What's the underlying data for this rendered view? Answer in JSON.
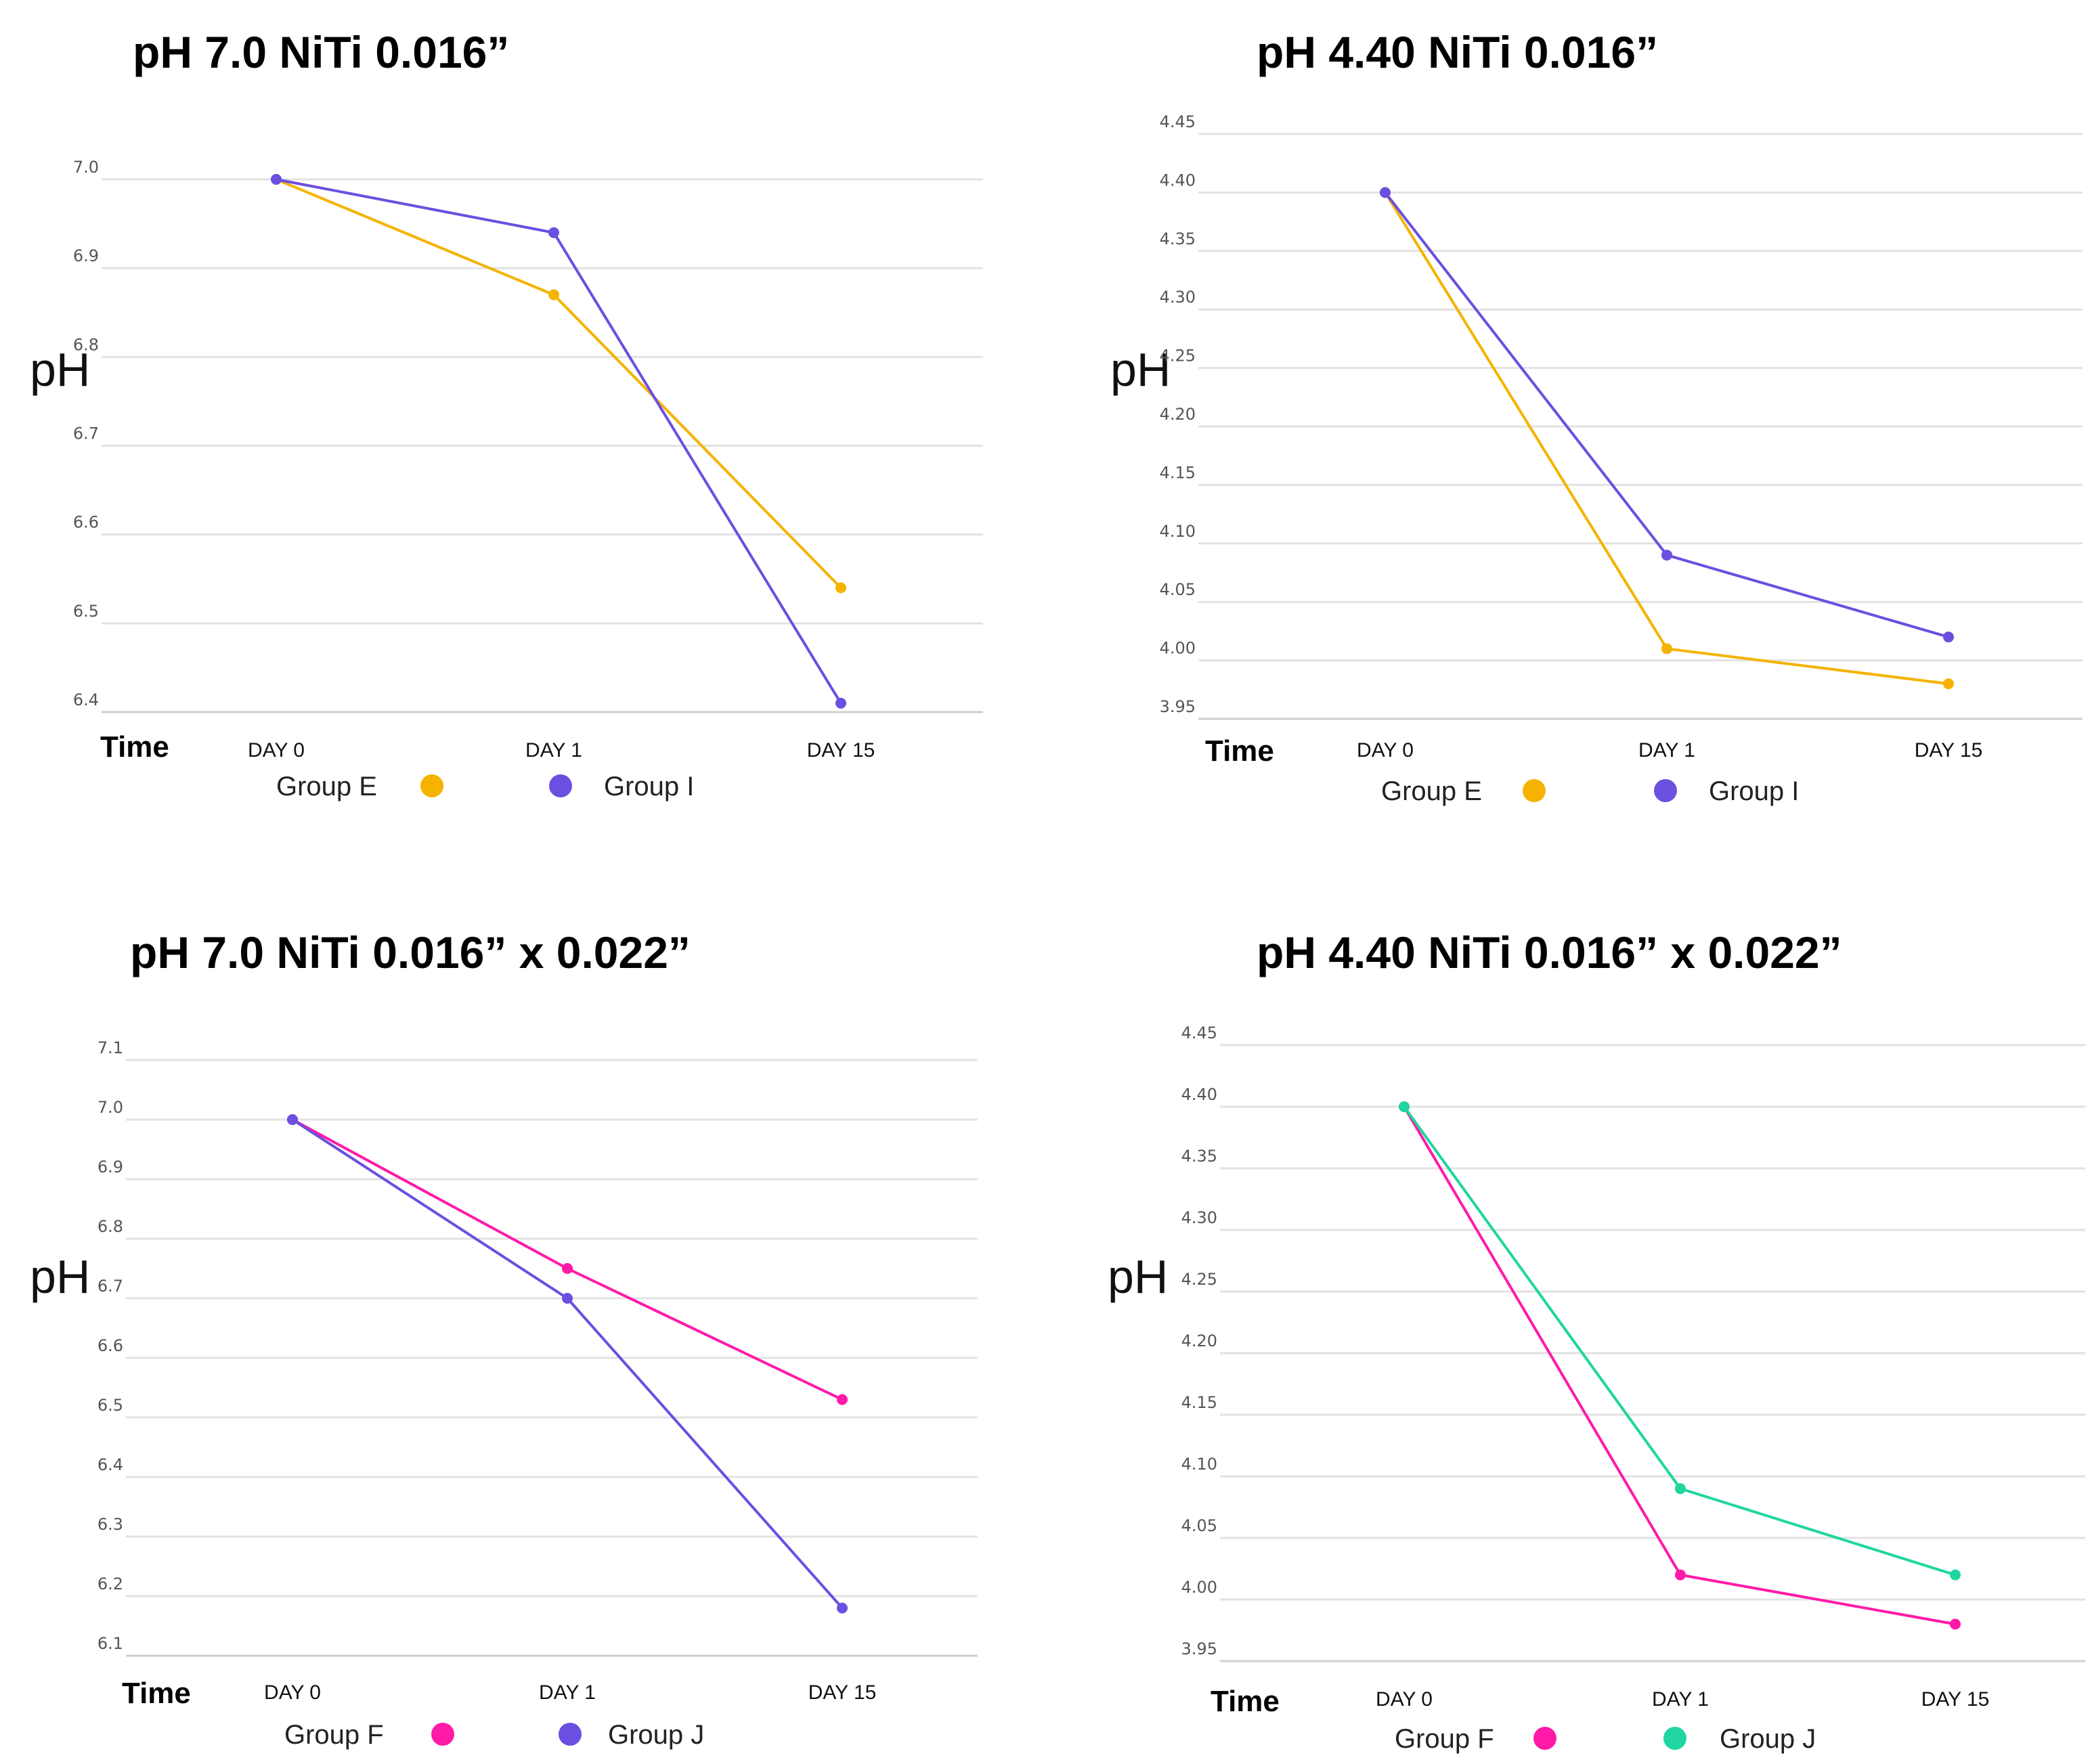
{
  "chart_data": [
    {
      "type": "line",
      "title": "pH 7.0 NiTi 0.016”",
      "xlabel": "Time",
      "ylabel": "pH",
      "categories": [
        "DAY 0",
        "DAY 1",
        "DAY 15"
      ],
      "yticks": [
        "7.0",
        "6.9",
        "6.8",
        "6.7",
        "6.6",
        "6.5",
        "6.4"
      ],
      "ylim": [
        6.4,
        7.0
      ],
      "series": [
        {
          "name": "Group E",
          "color": "#F5B300",
          "values": [
            7.0,
            6.87,
            6.54
          ]
        },
        {
          "name": "Group I",
          "color": "#6B4FE0",
          "values": [
            7.0,
            6.94,
            6.41
          ]
        }
      ]
    },
    {
      "type": "line",
      "title": "pH 4.40 NiTi 0.016”",
      "xlabel": "Time",
      "ylabel": "pH",
      "categories": [
        "DAY 0",
        "DAY 1",
        "DAY 15"
      ],
      "yticks": [
        "4.45",
        "4.40",
        "4.35",
        "4.30",
        "4.25",
        "4.20",
        "4.15",
        "4.10",
        "4.05",
        "4.00",
        "3.95"
      ],
      "ylim": [
        3.95,
        4.45
      ],
      "series": [
        {
          "name": "Group E",
          "color": "#F5B300",
          "values": [
            4.4,
            4.01,
            3.98
          ]
        },
        {
          "name": "Group I",
          "color": "#6B4FE0",
          "values": [
            4.4,
            4.09,
            4.02
          ]
        }
      ]
    },
    {
      "type": "line",
      "title": "pH 7.0 NiTi 0.016” x 0.022”",
      "xlabel": "Time",
      "ylabel": "pH",
      "categories": [
        "DAY 0",
        "DAY 1",
        "DAY 15"
      ],
      "yticks": [
        "7.1",
        "7.0",
        "6.9",
        "6.8",
        "6.7",
        "6.6",
        "6.5",
        "6.4",
        "6.3",
        "6.2",
        "6.1"
      ],
      "ylim": [
        6.1,
        7.1
      ],
      "series": [
        {
          "name": "Group F",
          "color": "#FF1AA8",
          "values": [
            7.0,
            6.75,
            6.53
          ]
        },
        {
          "name": "Group J",
          "color": "#6B4FE0",
          "values": [
            7.0,
            6.7,
            6.18
          ]
        }
      ]
    },
    {
      "type": "line",
      "title": "pH 4.40 NiTi 0.016” x 0.022”",
      "xlabel": "Time",
      "ylabel": "pH",
      "categories": [
        "DAY 0",
        "DAY 1",
        "DAY 15"
      ],
      "yticks": [
        "4.45",
        "4.40",
        "4.35",
        "4.30",
        "4.25",
        "4.20",
        "4.15",
        "4.10",
        "4.05",
        "4.00",
        "3.95"
      ],
      "ylim": [
        3.95,
        4.45
      ],
      "series": [
        {
          "name": "Group F",
          "color": "#FF1AA8",
          "values": [
            4.4,
            4.02,
            3.98
          ]
        },
        {
          "name": "Group J",
          "color": "#1FD6A0",
          "values": [
            4.4,
            4.09,
            4.02
          ]
        }
      ]
    }
  ]
}
